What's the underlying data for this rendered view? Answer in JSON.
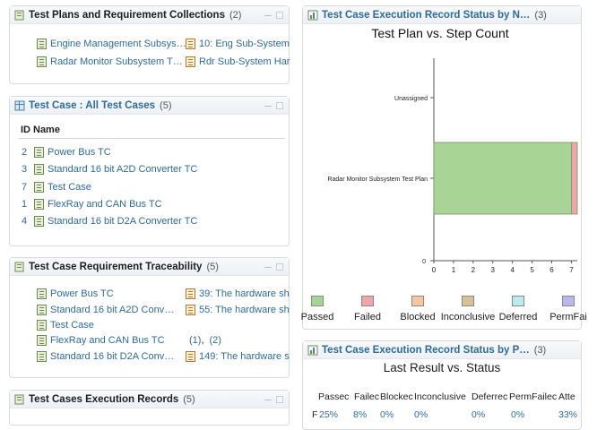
{
  "colors": {
    "link": "#2e6b9b",
    "passed": "#a8d595",
    "failed": "#f0a6a6",
    "blocked": "#f6c79d",
    "inconclusive": "#d6c296",
    "deferred": "#b9ecec",
    "permfail": "#bdb6ef"
  },
  "plans_panel": {
    "title": "Test Plans and Requirement Collections",
    "count": "(2)",
    "items_left": [
      "Engine Management Subsys…",
      "Radar Monitor Subsystem T…"
    ],
    "items_right": [
      "10: Eng Sub-System",
      "Rdr Sub-System Har"
    ]
  },
  "testcase_panel": {
    "title": "Test Case : All Test Cases",
    "count": "(5)",
    "col_id": "ID",
    "col_name": "Name",
    "rows": [
      {
        "id": "2",
        "name": "Power Bus TC"
      },
      {
        "id": "3",
        "name": "Standard 16 bit A2D Converter TC"
      },
      {
        "id": "7",
        "name": "Test Case"
      },
      {
        "id": "1",
        "name": "FlexRay and CAN Bus TC"
      },
      {
        "id": "4",
        "name": "Standard 16 bit D2A Converter TC"
      }
    ]
  },
  "trace_panel": {
    "title": "Test Case Requirement Traceability",
    "count": "(5)",
    "items_left": [
      "Power Bus TC",
      "Standard 16 bit A2D Conv…",
      "Test Case",
      "FlexRay and CAN Bus TC",
      "Standard 16 bit D2A Conv…"
    ],
    "req_a": "39: The hardware sh",
    "req_b": "55: The hardware sh",
    "link_1": "(1)",
    "sep": ",",
    "link_2": "(2)",
    "req_c": "149: The hardware s"
  },
  "exec_panel": {
    "title": "Test Cases Execution Records",
    "count": "(5)"
  },
  "chart_panel": {
    "title": "Test Case Execution Record Status by N…",
    "count": "(3)"
  },
  "chart_data": {
    "type": "bar",
    "orientation": "horizontal",
    "stacked": true,
    "title": "Test Plan vs. Step Count",
    "categories": [
      "Unassigned",
      "Radar Monitor Subsystem Test Plan"
    ],
    "xticks": [
      "0",
      "1",
      "2",
      "3",
      "4",
      "5",
      "6",
      "7"
    ],
    "yzero_label": "0",
    "xlim": [
      0,
      7.3
    ],
    "series": [
      {
        "name": "Passed",
        "values": [
          0,
          7.0
        ]
      },
      {
        "name": "Failed",
        "values": [
          0,
          0.3
        ]
      },
      {
        "name": "Blocked",
        "values": [
          0,
          0
        ]
      },
      {
        "name": "Inconclusive",
        "values": [
          0,
          0
        ]
      },
      {
        "name": "Deferred",
        "values": [
          0,
          0
        ]
      },
      {
        "name": "PermFai",
        "values": [
          0,
          0
        ]
      }
    ]
  },
  "status_panel": {
    "title": "Test Case Execution Record Status by P…",
    "count": "(3)",
    "subtitle": "Last Result vs. Status",
    "headers": [
      "Passec",
      "Failec",
      "Blockec",
      "Inconclusive",
      "Deferrec",
      "PermFailec",
      "Atte"
    ],
    "row_mark": "F",
    "values": [
      "25%",
      "8%",
      "0%",
      "0%",
      "0%",
      "0%",
      "33%"
    ]
  }
}
